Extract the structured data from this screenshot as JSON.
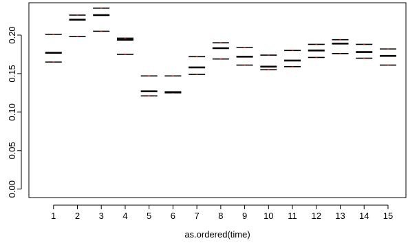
{
  "chart_data": {
    "type": "box",
    "title": "",
    "xlabel": "as.ordered(time)",
    "ylabel": "",
    "categories": [
      "1",
      "2",
      "3",
      "4",
      "5",
      "6",
      "7",
      "8",
      "9",
      "10",
      "11",
      "12",
      "13",
      "14",
      "15"
    ],
    "ylim": [
      -0.011,
      0.242
    ],
    "yticks": [
      0.0,
      0.05,
      0.1,
      0.15,
      0.2
    ],
    "ytick_labels": [
      "0.00",
      "0.05",
      "0.10",
      "0.15",
      "0.20"
    ],
    "boxes": [
      {
        "q1": 0.165,
        "median": 0.177,
        "q3": 0.201
      },
      {
        "q1": 0.198,
        "median": 0.22,
        "q3": 0.226
      },
      {
        "q1": 0.205,
        "median": 0.226,
        "q3": 0.235
      },
      {
        "q1": 0.175,
        "median": 0.194,
        "q3": 0.196
      },
      {
        "q1": 0.121,
        "median": 0.127,
        "q3": 0.147
      },
      {
        "q1": 0.125,
        "median": 0.126,
        "q3": 0.147
      },
      {
        "q1": 0.149,
        "median": 0.158,
        "q3": 0.172
      },
      {
        "q1": 0.169,
        "median": 0.183,
        "q3": 0.19
      },
      {
        "q1": 0.161,
        "median": 0.172,
        "q3": 0.184
      },
      {
        "q1": 0.155,
        "median": 0.159,
        "q3": 0.174
      },
      {
        "q1": 0.159,
        "median": 0.167,
        "q3": 0.18
      },
      {
        "q1": 0.171,
        "median": 0.18,
        "q3": 0.188
      },
      {
        "q1": 0.176,
        "median": 0.189,
        "q3": 0.194
      },
      {
        "q1": 0.17,
        "median": 0.178,
        "q3": 0.188
      },
      {
        "q1": 0.161,
        "median": 0.173,
        "q3": 0.182
      }
    ],
    "colors": {
      "box": "#000000",
      "whisker_tick": "#ff0000"
    },
    "grid": false,
    "legend": "none"
  }
}
